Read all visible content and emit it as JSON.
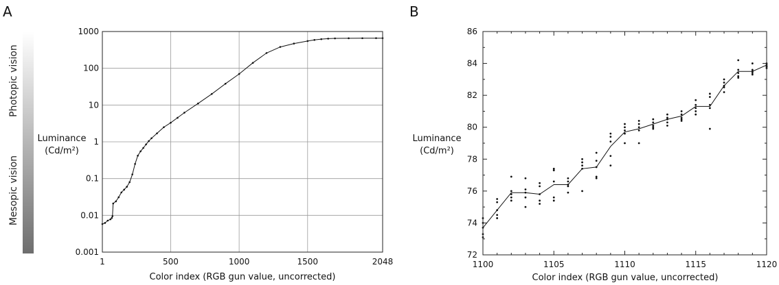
{
  "figure": {
    "panel_a_letter": "A",
    "panel_b_letter": "B",
    "vision_bar": {
      "top_label": "Photopic vision",
      "bottom_label": "Mesopic vision",
      "gradient_top_color": "#ffffff",
      "gradient_bottom_color": "#6e6e6e"
    }
  },
  "chart_data": [
    {
      "id": "panel-a",
      "type": "line",
      "title": "",
      "xlabel": "Color index (RGB gun value, uncorrected)",
      "ylabel_line1": "Luminance",
      "ylabel_line2": "(Cd/m²)",
      "xscale": "linear",
      "yscale": "log",
      "xlim": [
        1,
        2048
      ],
      "ylim": [
        0.001,
        1000
      ],
      "xticks": [
        1,
        500,
        1000,
        1500,
        2048
      ],
      "xtick_labels": [
        "1",
        "500",
        "1000",
        "1500",
        "2048"
      ],
      "yticks": [
        0.001,
        0.01,
        0.1,
        1,
        10,
        100,
        1000
      ],
      "ytick_labels": [
        "0.001",
        "0.01",
        "0.1",
        "1",
        "10",
        "100",
        "1000"
      ],
      "grid": true,
      "x": [
        1,
        20,
        40,
        60,
        70,
        75,
        80,
        100,
        120,
        140,
        160,
        180,
        200,
        220,
        240,
        260,
        280,
        300,
        320,
        340,
        360,
        400,
        450,
        500,
        550,
        600,
        700,
        800,
        900,
        1000,
        1100,
        1200,
        1300,
        1400,
        1500,
        1550,
        1600,
        1650,
        1700,
        1800,
        1900,
        2000,
        2048
      ],
      "y": [
        0.0058,
        0.0062,
        0.0072,
        0.0078,
        0.0085,
        0.0095,
        0.021,
        0.024,
        0.031,
        0.042,
        0.05,
        0.06,
        0.08,
        0.13,
        0.25,
        0.42,
        0.55,
        0.68,
        0.85,
        1.05,
        1.25,
        1.7,
        2.5,
        3.3,
        4.5,
        6.2,
        11,
        20,
        38,
        70,
        140,
        260,
        380,
        470,
        550,
        590,
        620,
        640,
        650,
        655,
        658,
        660,
        660
      ]
    },
    {
      "id": "panel-b",
      "type": "line",
      "title": "",
      "xlabel": "Color index (RGB gun value, uncorrected)",
      "ylabel_line1": "Luminance",
      "ylabel_line2": "(Cd/m²)",
      "xscale": "linear",
      "yscale": "linear",
      "xlim": [
        1100,
        1120
      ],
      "ylim": [
        72,
        86
      ],
      "xticks": [
        1100,
        1105,
        1110,
        1115,
        1120
      ],
      "xtick_labels": [
        "1100",
        "1105",
        "1110",
        "1115",
        "1120"
      ],
      "yticks": [
        72,
        74,
        76,
        78,
        80,
        82,
        84,
        86
      ],
      "ytick_labels": [
        "72",
        "74",
        "76",
        "78",
        "80",
        "82",
        "84",
        "86"
      ],
      "minor_xticks_per_unit": 1,
      "grid": false,
      "series": [
        {
          "kind": "mean-line",
          "x": [
            1100,
            1101,
            1102,
            1103,
            1104,
            1105,
            1106,
            1107,
            1108,
            1109,
            1110,
            1111,
            1112,
            1113,
            1114,
            1115,
            1116,
            1117,
            1118,
            1119,
            1120
          ],
          "y": [
            73.7,
            74.8,
            75.9,
            75.9,
            75.8,
            76.4,
            76.4,
            77.4,
            77.5,
            78.8,
            79.7,
            79.9,
            80.2,
            80.5,
            80.7,
            81.3,
            81.3,
            82.6,
            83.5,
            83.5,
            83.9
          ]
        },
        {
          "kind": "samples",
          "x": [
            1100,
            1100,
            1100,
            1100,
            1100,
            1101,
            1101,
            1101,
            1101,
            1101,
            1102,
            1102,
            1102,
            1102,
            1102,
            1103,
            1103,
            1103,
            1103,
            1103,
            1104,
            1104,
            1104,
            1104,
            1104,
            1105,
            1105,
            1105,
            1105,
            1105,
            1106,
            1106,
            1106,
            1106,
            1106,
            1107,
            1107,
            1107,
            1107,
            1107,
            1108,
            1108,
            1108,
            1108,
            1108,
            1109,
            1109,
            1109,
            1109,
            1109,
            1110,
            1110,
            1110,
            1110,
            1110,
            1111,
            1111,
            1111,
            1111,
            1111,
            1112,
            1112,
            1112,
            1112,
            1112,
            1113,
            1113,
            1113,
            1113,
            1113,
            1114,
            1114,
            1114,
            1114,
            1114,
            1115,
            1115,
            1115,
            1115,
            1115,
            1116,
            1116,
            1116,
            1116,
            1116,
            1117,
            1117,
            1117,
            1117,
            1117,
            1118,
            1118,
            1118,
            1118,
            1118,
            1119,
            1119,
            1119,
            1119,
            1119,
            1120,
            1120,
            1120,
            1120,
            1120
          ],
          "y": [
            74.3,
            74.0,
            73.7,
            73.3,
            73.1,
            75.5,
            75.3,
            74.8,
            74.5,
            74.3,
            76.9,
            76.0,
            75.8,
            75.6,
            75.4,
            76.8,
            76.1,
            75.9,
            75.6,
            75.0,
            76.5,
            76.3,
            75.8,
            75.4,
            75.2,
            77.4,
            77.3,
            76.6,
            75.6,
            75.4,
            76.8,
            76.6,
            76.4,
            76.3,
            75.9,
            78.0,
            77.8,
            77.6,
            77.4,
            76.0,
            78.4,
            77.9,
            77.5,
            76.9,
            76.8,
            79.6,
            79.4,
            79.1,
            78.2,
            77.6,
            80.2,
            80.0,
            79.8,
            79.6,
            79.0,
            80.4,
            80.2,
            80.0,
            79.8,
            79.0,
            80.5,
            80.3,
            80.1,
            80.0,
            79.9,
            80.8,
            80.6,
            80.5,
            80.3,
            80.1,
            81.0,
            80.8,
            80.6,
            80.5,
            80.4,
            81.7,
            81.4,
            81.2,
            81.0,
            80.8,
            82.1,
            81.9,
            81.4,
            81.2,
            79.9,
            83.0,
            82.8,
            82.6,
            82.5,
            82.2,
            84.2,
            83.6,
            83.4,
            83.2,
            83.1,
            84.0,
            83.6,
            83.5,
            83.4,
            83.3,
            84.0,
            83.9,
            83.8,
            83.8,
            83.7
          ]
        }
      ]
    }
  ]
}
